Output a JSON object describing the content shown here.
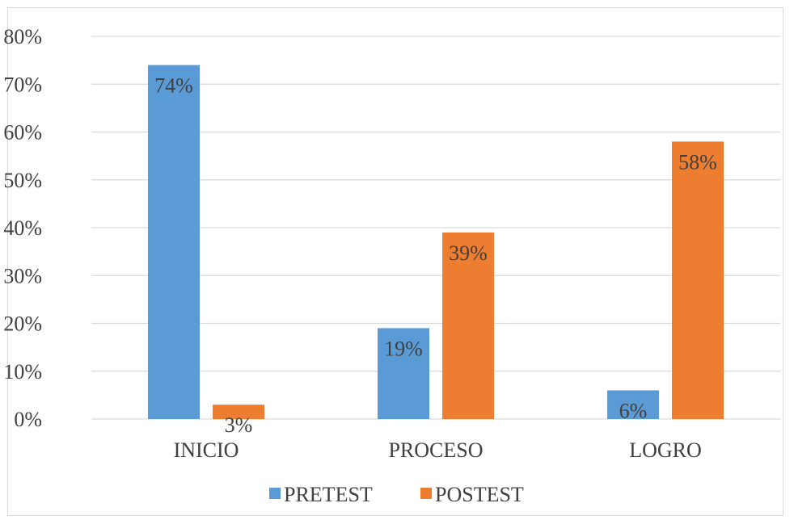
{
  "chart_data": {
    "type": "bar",
    "title": "",
    "xlabel": "",
    "ylabel": "",
    "categories": [
      "INICIO",
      "PROCESO",
      "LOGRO"
    ],
    "series": [
      {
        "name": "PRETEST",
        "values": [
          74,
          19,
          6
        ],
        "labels": [
          "74%",
          "19%",
          "6%"
        ],
        "color": "#5b9bd5"
      },
      {
        "name": "POSTEST",
        "values": [
          3,
          39,
          58
        ],
        "labels": [
          "3%",
          "39%",
          "58%"
        ],
        "color": "#ed7d31"
      }
    ],
    "ylim": [
      0,
      80
    ],
    "yticks": [
      0,
      10,
      20,
      30,
      40,
      50,
      60,
      70,
      80
    ],
    "ytick_labels": [
      "0%",
      "10%",
      "20%",
      "30%",
      "40%",
      "50%",
      "60%",
      "70%",
      "80%"
    ],
    "grid": true,
    "legend": "bottom"
  }
}
